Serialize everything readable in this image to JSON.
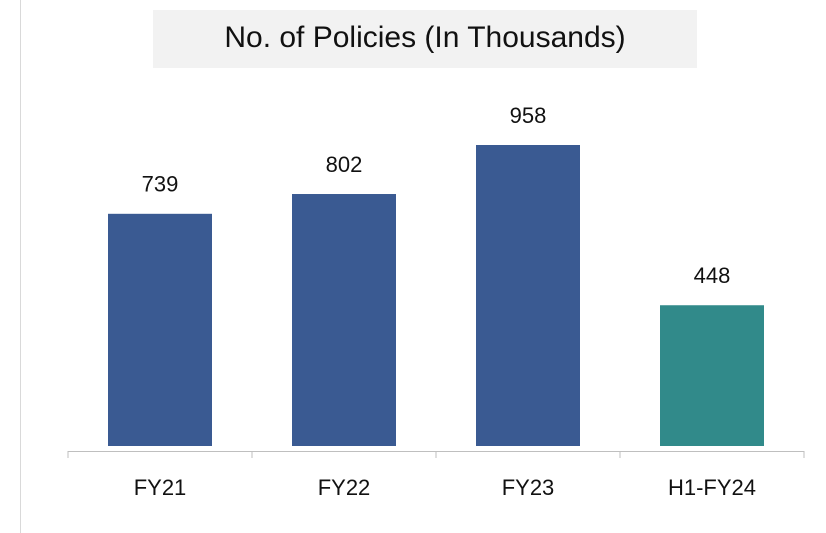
{
  "chart_data": {
    "type": "bar",
    "title": "No. of Policies (In Thousands)",
    "categories": [
      "FY21",
      "FY22",
      "FY23",
      "H1-FY24"
    ],
    "values": [
      739,
      802,
      958,
      448
    ],
    "colors": [
      "#3a5a92",
      "#3a5a92",
      "#3a5a92",
      "#318a8a"
    ]
  }
}
